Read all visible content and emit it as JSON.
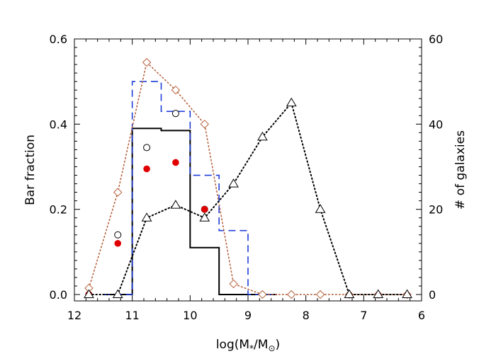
{
  "chart_data": {
    "type": "line",
    "xlabel": "log(M",
    "xlabel_sub_1": "*",
    "xlabel_mid": "/M",
    "xlabel_sub_2": "⊙",
    "xlabel_end": ")",
    "ylabel_left": "Bar fraction",
    "ylabel_right": "# of galaxies",
    "xlim": [
      12,
      6
    ],
    "x_reversed": true,
    "ylim_left": [
      -0.015,
      0.6
    ],
    "ylim_right": [
      -1.5,
      60
    ],
    "x_ticks": [
      "12",
      "11",
      "10",
      "9",
      "8",
      "7",
      "6"
    ],
    "y_ticks_left": [
      "0.0",
      "0.2",
      "0.4",
      "0.6"
    ],
    "y_ticks_right": [
      "0",
      "20",
      "40",
      "60"
    ],
    "grid": false,
    "series": [
      {
        "style": "histogram-solid",
        "color": "#000000",
        "axis": "left",
        "edges": [
          11.5,
          11.0,
          10.5,
          10.0,
          9.5,
          9.0,
          8.5
        ],
        "values": [
          0.0,
          0.39,
          0.385,
          0.11,
          0.0,
          0.0
        ]
      },
      {
        "style": "histogram-dashed",
        "color": "#1f3fd8",
        "axis": "left",
        "edges": [
          11.5,
          11.0,
          10.5,
          10.0,
          9.5,
          9.0,
          8.5
        ],
        "values": [
          0.0,
          0.5,
          0.43,
          0.28,
          0.15,
          0.0
        ]
      },
      {
        "style": "open-circle",
        "color": "#000000",
        "axis": "left",
        "x": [
          11.75,
          11.25,
          10.75,
          10.25,
          9.75
        ],
        "y": [
          0.0,
          0.14,
          0.345,
          0.425,
          0.2
        ]
      },
      {
        "style": "filled-circle",
        "color": "#e00000",
        "axis": "left",
        "x": [
          11.75,
          11.25,
          10.75,
          10.25,
          9.75
        ],
        "y": [
          0.0,
          0.12,
          0.295,
          0.31,
          0.2
        ]
      },
      {
        "style": "diamond-dotted",
        "color": "#b5603a",
        "axis": "left",
        "x": [
          11.75,
          11.25,
          10.75,
          10.25,
          9.75,
          9.25,
          8.75,
          8.25,
          7.75,
          7.25,
          6.75,
          6.25
        ],
        "y": [
          0.015,
          0.24,
          0.545,
          0.48,
          0.4,
          0.025,
          0.0,
          0.0,
          0.0,
          0.0,
          0.0,
          0.0
        ]
      },
      {
        "style": "triangle-dotted",
        "color": "#000000",
        "axis": "right",
        "x": [
          11.75,
          11.25,
          10.75,
          10.25,
          9.75,
          9.25,
          8.75,
          8.25,
          7.75,
          7.25,
          6.75,
          6.25
        ],
        "y": [
          0,
          0,
          18,
          21,
          18,
          26,
          37,
          45,
          20,
          0,
          0,
          0
        ]
      }
    ]
  }
}
